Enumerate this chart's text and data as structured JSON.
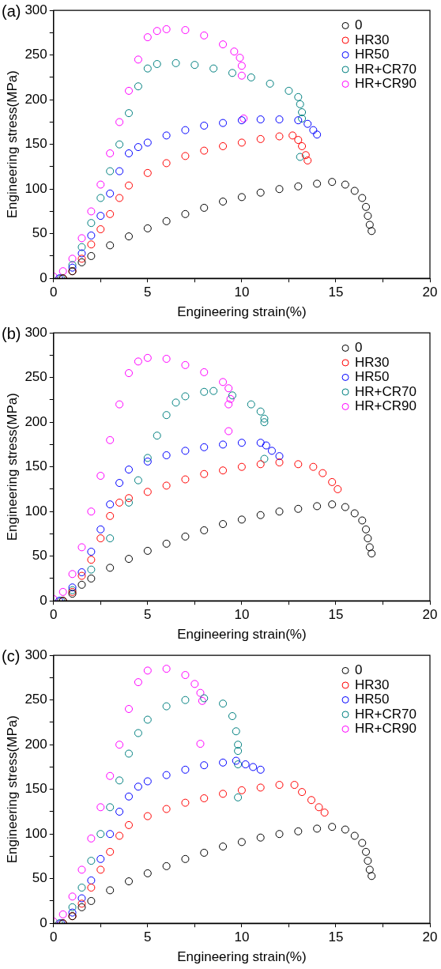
{
  "chart_data": [
    {
      "type": "scatter",
      "title": "(a)",
      "xlabel": "Engineering strain(%)",
      "ylabel": "Engineering stress(MPa)",
      "xlim": [
        0,
        20
      ],
      "ylim": [
        0,
        300
      ],
      "xticks": [
        0,
        {
          "value": 2.5,
          "label": null
        },
        5,
        {
          "value": 7.5,
          "label": null
        },
        10,
        {
          "value": 12.5,
          "label": null
        },
        15,
        {
          "value": 17.5,
          "label": null
        },
        20
      ],
      "yticks": [
        0,
        {
          "value": 25,
          "label": null
        },
        50,
        {
          "value": 75,
          "label": null
        },
        100,
        {
          "value": 125,
          "label": null
        },
        150,
        {
          "value": 175,
          "label": null
        },
        200,
        {
          "value": 225,
          "label": null
        },
        250,
        {
          "value": 275,
          "label": null
        },
        300
      ],
      "grid": false,
      "legend": "top right",
      "marker": "circle",
      "series": [
        {
          "name": "0",
          "color": "#000000",
          "x": [
            0.5,
            1,
            1.5,
            2,
            3,
            4,
            5,
            6,
            7,
            8,
            9,
            10,
            11,
            12,
            13,
            14,
            14.8,
            15.5,
            16,
            16.4,
            16.6,
            16.7,
            16.8,
            16.9
          ],
          "values": [
            0,
            8,
            18,
            25,
            37,
            47,
            56,
            64,
            72,
            79,
            86,
            91,
            96,
            100,
            103,
            106,
            108,
            105,
            98,
            90,
            80,
            70,
            60,
            53
          ]
        },
        {
          "name": "HR30",
          "color": "#ff0000",
          "x": [
            0.5,
            1,
            1.5,
            2,
            2.5,
            3,
            3.5,
            4,
            5,
            6,
            7,
            8,
            9,
            10,
            11,
            12,
            12.7,
            13,
            13.2,
            13.4,
            13.5
          ],
          "values": [
            0,
            8,
            22,
            38,
            55,
            72,
            90,
            104,
            118,
            129,
            137,
            143,
            148,
            152,
            156,
            159,
            160,
            155,
            148,
            138,
            132
          ]
        },
        {
          "name": "HR50",
          "color": "#0000ff",
          "x": [
            0.3,
            1,
            1.5,
            2,
            2.5,
            3,
            3.5,
            4,
            4.5,
            5,
            6,
            7,
            8,
            9,
            10,
            11,
            12,
            13,
            13.5,
            13.8,
            14
          ],
          "values": [
            0,
            12,
            28,
            48,
            70,
            95,
            120,
            140,
            147,
            152,
            160,
            166,
            171,
            174,
            177,
            178,
            178,
            177,
            173,
            166,
            161
          ]
        },
        {
          "name": "HR+CR70",
          "color": "#008080",
          "x": [
            0.4,
            1,
            1.5,
            2,
            2.5,
            3,
            3.5,
            4,
            4.5,
            5,
            5.5,
            6.5,
            7.5,
            8.5,
            9.5,
            10.5,
            11.5,
            12.5,
            13,
            13.1,
            13.2,
            13.2,
            13.1
          ],
          "values": [
            0,
            15,
            35,
            62,
            90,
            120,
            150,
            185,
            215,
            235,
            240,
            241,
            239,
            235,
            230,
            225,
            218,
            210,
            203,
            195,
            186,
            179,
            136
          ]
        },
        {
          "name": "HR+CR90",
          "color": "#ff00ff",
          "x": [
            0,
            0.5,
            1,
            1.5,
            2,
            2.5,
            3,
            3.5,
            4,
            4.5,
            5,
            5.5,
            6,
            7,
            8,
            9,
            9.6,
            9.9,
            10,
            10,
            10.1
          ],
          "values": [
            2,
            8,
            22,
            45,
            75,
            105,
            140,
            175,
            210,
            245,
            270,
            277,
            279,
            278,
            272,
            262,
            254,
            247,
            238,
            227,
            179
          ]
        }
      ]
    },
    {
      "type": "scatter",
      "title": "(b)",
      "xlabel": "Engineering strain(%)",
      "ylabel": "Engineering stress(MPa)",
      "xlim": [
        0,
        20
      ],
      "ylim": [
        0,
        300
      ],
      "xticks": [
        0,
        {
          "value": 2.5,
          "label": null
        },
        5,
        {
          "value": 7.5,
          "label": null
        },
        10,
        {
          "value": 12.5,
          "label": null
        },
        15,
        {
          "value": 17.5,
          "label": null
        },
        20
      ],
      "yticks": [
        0,
        {
          "value": 25,
          "label": null
        },
        50,
        {
          "value": 75,
          "label": null
        },
        100,
        {
          "value": 125,
          "label": null
        },
        150,
        {
          "value": 175,
          "label": null
        },
        200,
        {
          "value": 225,
          "label": null
        },
        250,
        {
          "value": 275,
          "label": null
        },
        300
      ],
      "grid": false,
      "legend": "top right",
      "marker": "circle",
      "series": [
        {
          "name": "0",
          "color": "#000000",
          "x": [
            0.5,
            1,
            1.5,
            2,
            3,
            4,
            5,
            6,
            7,
            8,
            9,
            10,
            11,
            12,
            13,
            14,
            14.8,
            15.5,
            16,
            16.4,
            16.6,
            16.7,
            16.8,
            16.9
          ],
          "values": [
            0,
            8,
            18,
            25,
            37,
            47,
            56,
            64,
            72,
            79,
            86,
            91,
            96,
            100,
            103,
            106,
            108,
            105,
            98,
            90,
            80,
            70,
            60,
            53
          ]
        },
        {
          "name": "HR30",
          "color": "#ff0000",
          "x": [
            0.5,
            1,
            1.5,
            2,
            2.5,
            3,
            3.5,
            4,
            5,
            6,
            7,
            8,
            9,
            10,
            11,
            12,
            13,
            13.8,
            14.3,
            14.8,
            15.1
          ],
          "values": [
            0,
            10,
            28,
            46,
            70,
            95,
            110,
            115,
            122,
            129,
            136,
            142,
            146,
            150,
            153,
            155,
            153,
            150,
            143,
            133,
            125
          ]
        },
        {
          "name": "HR50",
          "color": "#0000ff",
          "x": [
            0.3,
            1,
            1.5,
            2,
            2.5,
            3,
            3.5,
            4,
            5,
            6,
            7,
            8,
            9,
            10,
            11,
            11.3,
            11.6,
            12
          ],
          "values": [
            0,
            15,
            32,
            55,
            80,
            108,
            132,
            147,
            156,
            163,
            168,
            172,
            175,
            177,
            177,
            174,
            168,
            162
          ]
        },
        {
          "name": "HR+CR70",
          "color": "#008080",
          "x": [
            0.4,
            1,
            2,
            3,
            4,
            4.5,
            5,
            5.5,
            6,
            6.5,
            7,
            8,
            8.5,
            9.5,
            10.5,
            11,
            11.2,
            11.2,
            11.2
          ],
          "values": [
            0,
            12,
            35,
            70,
            110,
            135,
            160,
            185,
            208,
            222,
            229,
            234,
            235,
            230,
            220,
            212,
            204,
            200,
            159
          ]
        },
        {
          "name": "HR+CR90",
          "color": "#ff00ff",
          "x": [
            0,
            0.5,
            1,
            1.5,
            2,
            2.5,
            3,
            3.5,
            4,
            4.5,
            5,
            6,
            7,
            8,
            9,
            9.3,
            9.4,
            9.3,
            9.3
          ],
          "values": [
            2,
            10,
            30,
            60,
            100,
            140,
            180,
            220,
            255,
            268,
            272,
            271,
            264,
            256,
            245,
            238,
            226,
            220,
            190
          ]
        }
      ]
    },
    {
      "type": "scatter",
      "title": "(c)",
      "xlabel": "Engineering strain(%)",
      "ylabel": "Engineering stress(MPa)",
      "xlim": [
        0,
        20
      ],
      "ylim": [
        0,
        300
      ],
      "xticks": [
        0,
        {
          "value": 2.5,
          "label": null
        },
        5,
        {
          "value": 7.5,
          "label": null
        },
        10,
        {
          "value": 12.5,
          "label": null
        },
        15,
        {
          "value": 17.5,
          "label": null
        },
        20
      ],
      "yticks": [
        0,
        {
          "value": 25,
          "label": null
        },
        50,
        {
          "value": 75,
          "label": null
        },
        100,
        {
          "value": 125,
          "label": null
        },
        150,
        {
          "value": 175,
          "label": null
        },
        200,
        {
          "value": 225,
          "label": null
        },
        250,
        {
          "value": 275,
          "label": null
        },
        300
      ],
      "grid": false,
      "legend": "top right",
      "marker": "circle",
      "series": [
        {
          "name": "0",
          "color": "#000000",
          "x": [
            0.5,
            1,
            1.5,
            2,
            3,
            4,
            5,
            6,
            7,
            8,
            9,
            10,
            11,
            12,
            13,
            14,
            14.8,
            15.5,
            16,
            16.4,
            16.6,
            16.7,
            16.8,
            16.9
          ],
          "values": [
            0,
            8,
            18,
            25,
            37,
            47,
            56,
            64,
            72,
            79,
            86,
            91,
            96,
            100,
            103,
            106,
            108,
            105,
            98,
            90,
            80,
            70,
            60,
            53
          ]
        },
        {
          "name": "HR30",
          "color": "#ff0000",
          "x": [
            0.5,
            1,
            1.5,
            2,
            2.5,
            3,
            3.5,
            4,
            5,
            6,
            7,
            8,
            9,
            10,
            11,
            12,
            12.8,
            13.2,
            13.7,
            14.1,
            14.4
          ],
          "values": [
            0,
            8,
            22,
            40,
            60,
            80,
            98,
            110,
            120,
            128,
            135,
            140,
            145,
            149,
            152,
            155,
            155,
            147,
            138,
            130,
            124
          ]
        },
        {
          "name": "HR50",
          "color": "#0000ff",
          "x": [
            0.4,
            1,
            1.5,
            2,
            2.5,
            3,
            3.5,
            4,
            4.5,
            5,
            6,
            7,
            8,
            9,
            9.7,
            10.2,
            10.6,
            11
          ],
          "values": [
            0,
            12,
            28,
            48,
            72,
            100,
            125,
            142,
            153,
            159,
            166,
            172,
            177,
            180,
            182,
            178,
            175,
            172
          ]
        },
        {
          "name": "HR+CR70",
          "color": "#008080",
          "x": [
            0.3,
            1,
            1.5,
            2,
            2.5,
            3,
            3.5,
            4,
            4.5,
            5,
            6,
            7,
            8,
            9,
            9.5,
            9.7,
            9.8,
            9.8,
            9.8,
            9.8
          ],
          "values": [
            0,
            18,
            40,
            70,
            100,
            130,
            160,
            190,
            213,
            228,
            243,
            250,
            252,
            246,
            232,
            215,
            200,
            193,
            178,
            141
          ]
        },
        {
          "name": "HR+CR90",
          "color": "#ff00ff",
          "x": [
            0,
            0.5,
            1,
            1.5,
            2,
            2.5,
            3,
            3.5,
            4,
            4.5,
            5,
            6,
            7,
            7.5,
            7.8,
            7.9,
            7.8
          ],
          "values": [
            2,
            10,
            30,
            60,
            95,
            130,
            165,
            200,
            240,
            270,
            283,
            285,
            278,
            268,
            258,
            249,
            201
          ]
        }
      ]
    }
  ]
}
